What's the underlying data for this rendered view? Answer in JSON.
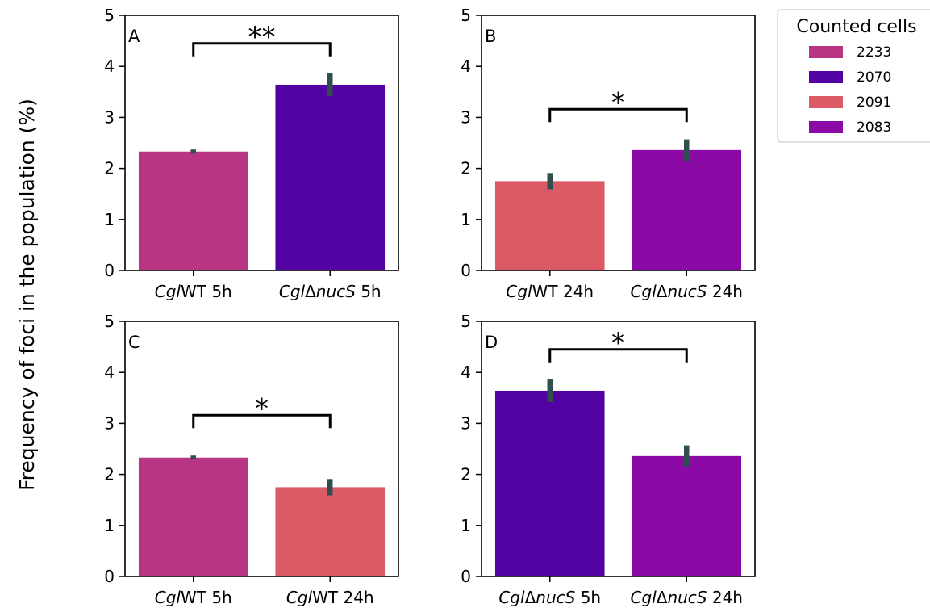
{
  "ylabel": "Frequency of foci in the population (%)",
  "legend": {
    "title": "Counted cells",
    "entries": [
      {
        "label": "2233",
        "color": "#b83584"
      },
      {
        "label": "2070",
        "color": "#5302a3"
      },
      {
        "label": "2091",
        "color": "#dc5a65"
      },
      {
        "label": "2083",
        "color": "#8b0aa5"
      }
    ]
  },
  "chart_data": [
    {
      "type": "bar",
      "panel": "A",
      "categories": [
        {
          "prefix": "Cgl",
          "mid": "WT",
          "suffix": " 5h"
        },
        {
          "prefix": "Cgl",
          "mid": "ΔnucS",
          "suffix": " 5h"
        }
      ],
      "values": [
        2.33,
        3.64
      ],
      "errors": [
        0.04,
        0.22
      ],
      "colors": [
        "#b83584",
        "#5302a3"
      ],
      "ylim": [
        0,
        5
      ],
      "yticks": [
        "0",
        "1",
        "2",
        "3",
        "4",
        "5"
      ],
      "significance": "**",
      "bracket_y": 4.45
    },
    {
      "type": "bar",
      "panel": "B",
      "categories": [
        {
          "prefix": "Cgl",
          "mid": "WT",
          "suffix": " 24h"
        },
        {
          "prefix": "Cgl",
          "mid": "ΔnucS",
          "suffix": " 24h"
        }
      ],
      "values": [
        1.75,
        2.36
      ],
      "errors": [
        0.16,
        0.21
      ],
      "colors": [
        "#dc5a65",
        "#8b0aa5"
      ],
      "ylim": [
        0,
        5
      ],
      "yticks": [
        "0",
        "1",
        "2",
        "3",
        "4",
        "5"
      ],
      "significance": "*",
      "bracket_y": 3.16
    },
    {
      "type": "bar",
      "panel": "C",
      "categories": [
        {
          "prefix": "Cgl",
          "mid": "WT",
          "suffix": " 5h"
        },
        {
          "prefix": "Cgl",
          "mid": "WT",
          "suffix": " 24h"
        }
      ],
      "values": [
        2.33,
        1.75
      ],
      "errors": [
        0.04,
        0.16
      ],
      "colors": [
        "#b83584",
        "#dc5a65"
      ],
      "ylim": [
        0,
        5
      ],
      "yticks": [
        "0",
        "1",
        "2",
        "3",
        "4",
        "5"
      ],
      "significance": "*",
      "bracket_y": 3.16
    },
    {
      "type": "bar",
      "panel": "D",
      "categories": [
        {
          "prefix": "Cgl",
          "mid": "ΔnucS",
          "suffix": " 5h"
        },
        {
          "prefix": "Cgl",
          "mid": "ΔnucS",
          "suffix": " 24h"
        }
      ],
      "values": [
        3.64,
        2.36
      ],
      "errors": [
        0.22,
        0.21
      ],
      "colors": [
        "#5302a3",
        "#8b0aa5"
      ],
      "ylim": [
        0,
        5
      ],
      "yticks": [
        "0",
        "1",
        "2",
        "3",
        "4",
        "5"
      ],
      "significance": "*",
      "bracket_y": 4.45
    }
  ]
}
